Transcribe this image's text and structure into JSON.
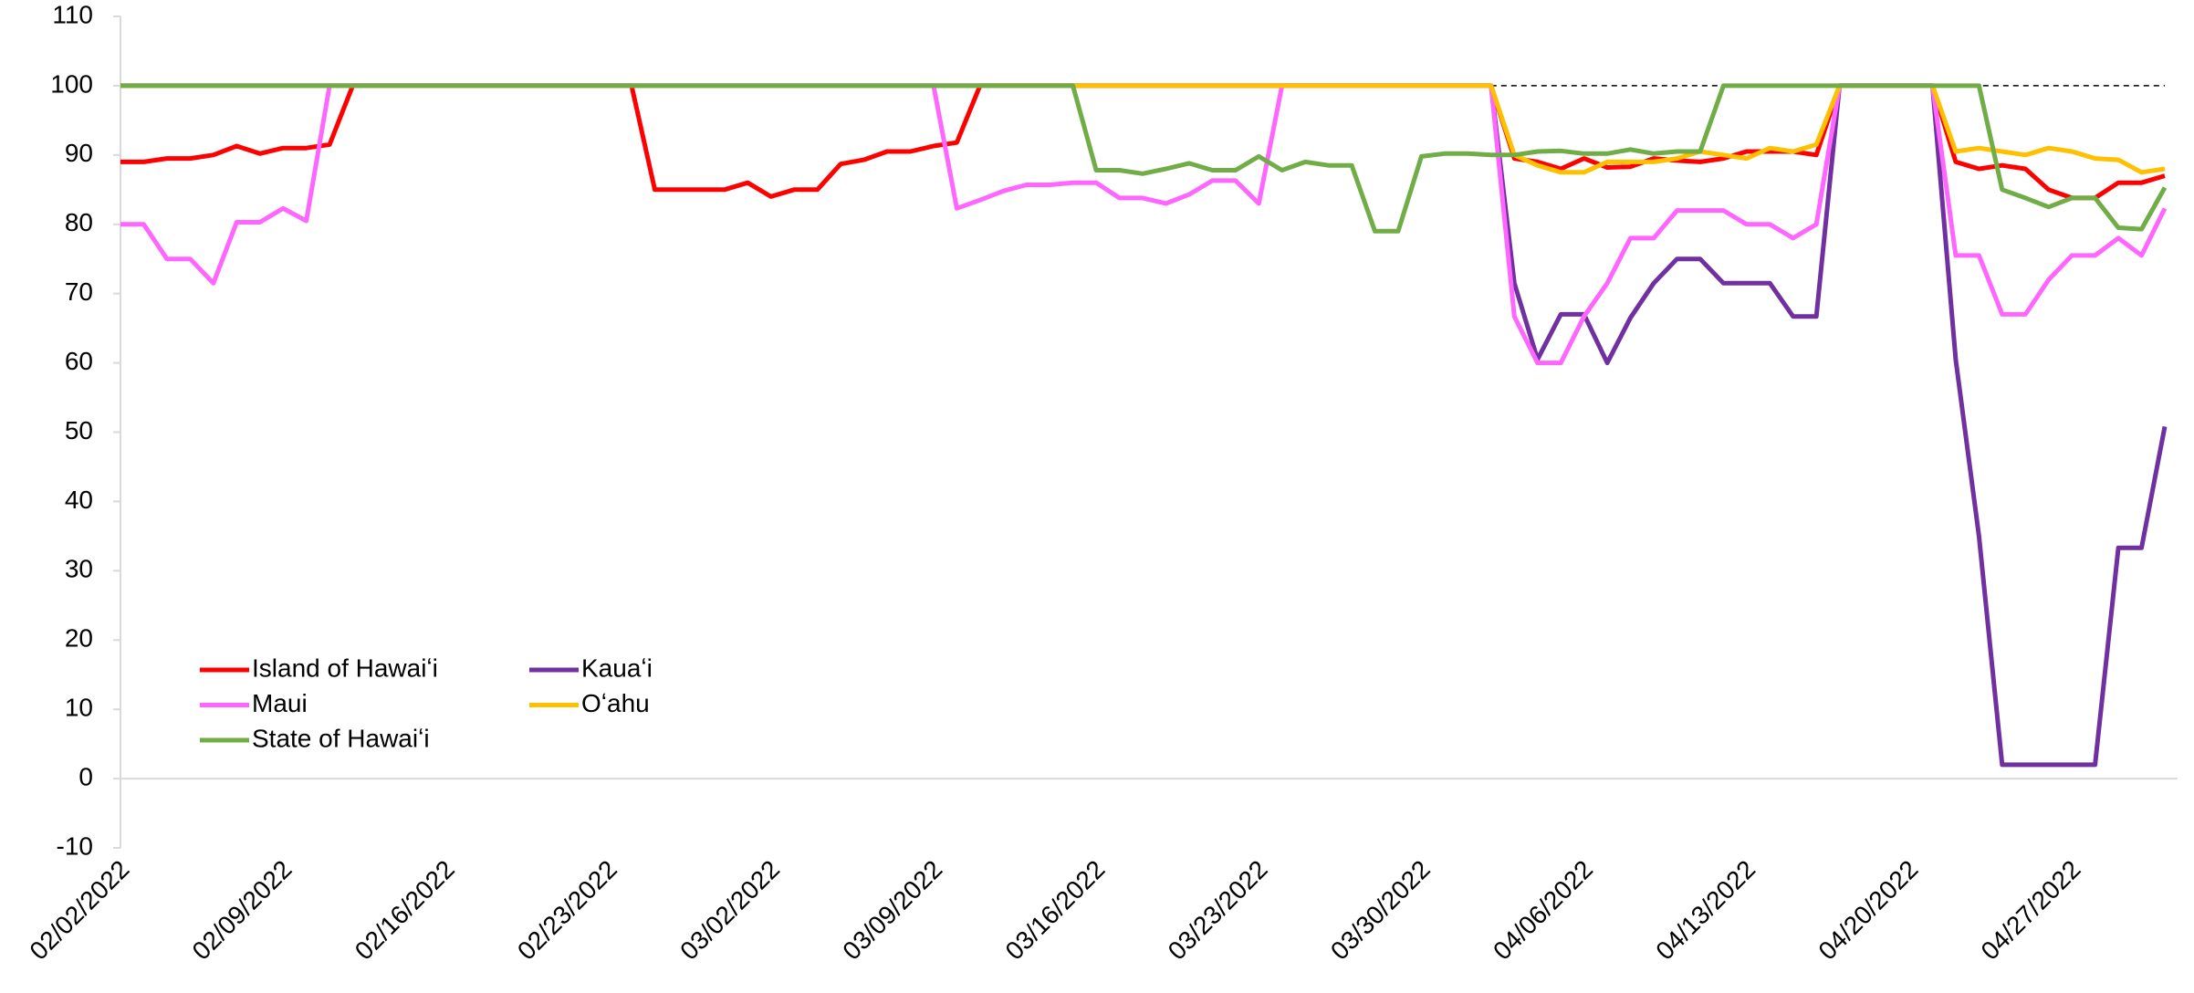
{
  "chart_data": {
    "type": "line",
    "categories": [
      "02/02/2022",
      null,
      null,
      null,
      null,
      null,
      null,
      "02/09/2022",
      null,
      null,
      null,
      null,
      null,
      null,
      "02/16/2022",
      null,
      null,
      null,
      null,
      null,
      null,
      "02/23/2022",
      null,
      null,
      null,
      null,
      null,
      null,
      "03/02/2022",
      null,
      null,
      null,
      null,
      null,
      null,
      "03/09/2022",
      null,
      null,
      null,
      null,
      null,
      null,
      "03/16/2022",
      null,
      null,
      null,
      null,
      null,
      null,
      "03/23/2022",
      null,
      null,
      null,
      null,
      null,
      null,
      "03/30/2022",
      null,
      null,
      null,
      null,
      null,
      null,
      "04/06/2022",
      null,
      null,
      null,
      null,
      null,
      null,
      "04/13/2022",
      null,
      null,
      null,
      null,
      null,
      null,
      "04/20/2022",
      null,
      null,
      null,
      null,
      null,
      null,
      "04/27/2022",
      null,
      null,
      null,
      null
    ],
    "series": [
      {
        "name": "Island of Hawaiʻi",
        "color": "#ff0000",
        "values": [
          89,
          89,
          89.5,
          89.5,
          90,
          91.3,
          90.2,
          91,
          91,
          91.5,
          100,
          100,
          100,
          100,
          100,
          100,
          100,
          100,
          100,
          100,
          100,
          100,
          100,
          85,
          85,
          85,
          85,
          86,
          84,
          85,
          85,
          88.7,
          89.3,
          90.5,
          90.5,
          91.3,
          91.8,
          100,
          100,
          100,
          100,
          100,
          100,
          100,
          100,
          100,
          100,
          100,
          100,
          100,
          100,
          100,
          100,
          100,
          100,
          100,
          100,
          100,
          100,
          100,
          89.5,
          89,
          88,
          89.5,
          88.2,
          88.3,
          89.5,
          89.2,
          89,
          89.5,
          90.5,
          90.5,
          90.5,
          90,
          100,
          100,
          100,
          100,
          100,
          89,
          88,
          88.5,
          88,
          85,
          83.8,
          83.8,
          86,
          86,
          87
        ]
      },
      {
        "name": "Kauaʻi",
        "color": "#7030a0",
        "values": [
          100,
          100,
          100,
          100,
          100,
          100,
          100,
          100,
          100,
          100,
          100,
          100,
          100,
          100,
          100,
          100,
          100,
          100,
          100,
          100,
          100,
          100,
          100,
          100,
          100,
          100,
          100,
          100,
          100,
          100,
          100,
          100,
          100,
          100,
          100,
          100,
          100,
          100,
          100,
          100,
          100,
          100,
          100,
          100,
          100,
          100,
          100,
          100,
          100,
          100,
          100,
          100,
          100,
          100,
          100,
          100,
          100,
          100,
          100,
          100,
          71.5,
          60.5,
          67,
          67,
          60,
          66.5,
          71.5,
          75,
          75,
          71.5,
          71.5,
          71.5,
          66.7,
          66.7,
          100,
          100,
          100,
          100,
          100,
          60.5,
          35,
          2,
          2,
          2,
          2,
          2,
          33.3,
          33.3,
          50.8
        ]
      },
      {
        "name": "Maui",
        "color": "#ff66ff",
        "values": [
          80,
          80,
          75,
          75,
          71.5,
          80.3,
          80.3,
          82.3,
          80.5,
          100,
          100,
          100,
          100,
          100,
          100,
          100,
          100,
          100,
          100,
          100,
          100,
          100,
          100,
          100,
          100,
          100,
          100,
          100,
          100,
          100,
          100,
          100,
          100,
          100,
          100,
          100,
          82.3,
          83.5,
          84.8,
          85.7,
          85.7,
          86,
          86,
          83.8,
          83.8,
          83,
          84.3,
          86.3,
          86.3,
          83,
          100,
          100,
          100,
          100,
          100,
          100,
          100,
          100,
          100,
          100,
          66.7,
          60,
          60,
          66.7,
          71.5,
          78,
          78,
          82,
          82,
          82,
          80,
          80,
          78,
          80,
          100,
          100,
          100,
          100,
          100,
          75.5,
          75.5,
          67,
          67,
          72,
          75.5,
          75.5,
          78,
          75.5,
          82.3
        ]
      },
      {
        "name": "Oʻahu",
        "color": "#ffc000",
        "values": [
          100,
          100,
          100,
          100,
          100,
          100,
          100,
          100,
          100,
          100,
          100,
          100,
          100,
          100,
          100,
          100,
          100,
          100,
          100,
          100,
          100,
          100,
          100,
          100,
          100,
          100,
          100,
          100,
          100,
          100,
          100,
          100,
          100,
          100,
          100,
          100,
          100,
          100,
          100,
          100,
          100,
          100,
          100,
          100,
          100,
          100,
          100,
          100,
          100,
          100,
          100,
          100,
          100,
          100,
          100,
          100,
          100,
          100,
          100,
          100,
          90,
          88.5,
          87.5,
          87.5,
          89,
          89,
          89,
          89.5,
          90.5,
          90,
          89.5,
          91,
          90.5,
          91.5,
          100,
          100,
          100,
          100,
          100,
          90.5,
          91,
          90.5,
          90,
          91,
          90.5,
          89.5,
          89.3,
          87.5,
          88
        ]
      },
      {
        "name": "State of Hawaiʻi",
        "color": "#70ad47",
        "values": [
          100,
          100,
          100,
          100,
          100,
          100,
          100,
          100,
          100,
          100,
          100,
          100,
          100,
          100,
          100,
          100,
          100,
          100,
          100,
          100,
          100,
          100,
          100,
          100,
          100,
          100,
          100,
          100,
          100,
          100,
          100,
          100,
          100,
          100,
          100,
          100,
          100,
          100,
          100,
          100,
          100,
          100,
          87.8,
          87.8,
          87.3,
          88,
          88.8,
          87.8,
          87.8,
          89.8,
          87.8,
          89,
          88.5,
          88.5,
          79,
          79,
          89.8,
          90.2,
          90.2,
          90,
          90,
          90.5,
          90.6,
          90.2,
          90.2,
          90.8,
          90.2,
          90.5,
          90.5,
          100,
          100,
          100,
          100,
          100,
          100,
          100,
          100,
          100,
          100,
          100,
          100,
          85,
          83.8,
          82.5,
          83.8,
          83.8,
          79.5,
          79.3,
          85.3
        ]
      }
    ],
    "ylim": [
      -10,
      110
    ],
    "yticks": [
      -10,
      0,
      10,
      20,
      30,
      40,
      50,
      60,
      70,
      80,
      90,
      100,
      110
    ],
    "reference_line": 100,
    "grid": false,
    "legend": "lower left"
  }
}
